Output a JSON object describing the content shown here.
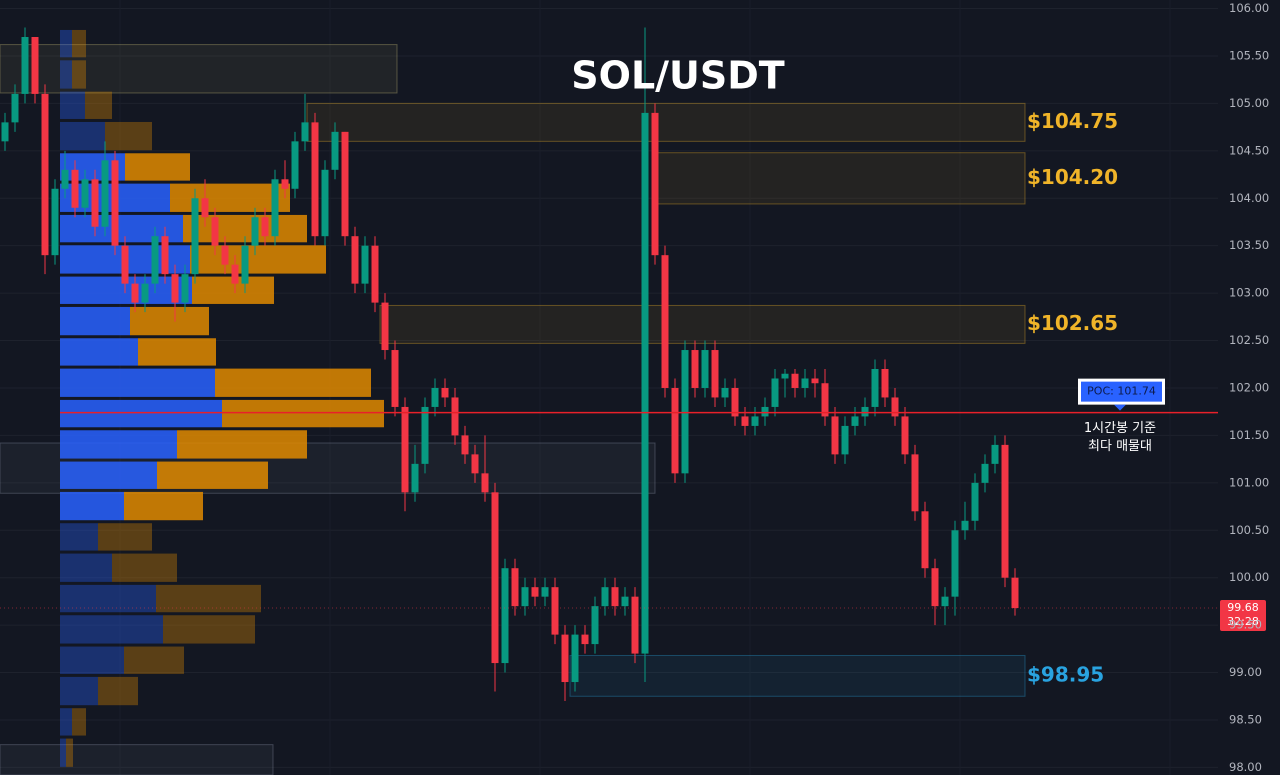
{
  "chart_data": {
    "type": "candlestick",
    "title": "SOL/USDT",
    "ylim": [
      97.92,
      106.09
    ],
    "yticks": [
      {
        "value": 98,
        "label": "98.00"
      },
      {
        "value": 98.5,
        "label": "98.50"
      },
      {
        "value": 99,
        "label": "99.00"
      },
      {
        "value": 99.5,
        "label": "99.50"
      },
      {
        "value": 100,
        "label": "100.00"
      },
      {
        "value": 100.5,
        "label": "100.50"
      },
      {
        "value": 101,
        "label": "101.00"
      },
      {
        "value": 101.5,
        "label": "101.50"
      },
      {
        "value": 102,
        "label": "102.00"
      },
      {
        "value": 102.5,
        "label": "102.50"
      },
      {
        "value": 103,
        "label": "103.00"
      },
      {
        "value": 103.5,
        "label": "103.50"
      },
      {
        "value": 104,
        "label": "104.00"
      },
      {
        "value": 104.5,
        "label": "104.50"
      },
      {
        "value": 105,
        "label": "105.00"
      },
      {
        "value": 105.5,
        "label": "105.50"
      },
      {
        "value": 106,
        "label": "106.00"
      }
    ],
    "grid": true,
    "up_color": "#089981",
    "down_color": "#f23645",
    "ohlc": [
      [
        104.6,
        104.9,
        104.5,
        104.8
      ],
      [
        104.8,
        105.2,
        104.7,
        105.1
      ],
      [
        105.1,
        105.8,
        105.0,
        105.7
      ],
      [
        105.7,
        105.7,
        105.0,
        105.1
      ],
      [
        105.1,
        105.2,
        103.2,
        103.4
      ],
      [
        103.4,
        104.2,
        103.3,
        104.1
      ],
      [
        104.1,
        104.5,
        104.0,
        104.3
      ],
      [
        104.3,
        104.4,
        103.8,
        103.9
      ],
      [
        103.9,
        104.3,
        103.8,
        104.2
      ],
      [
        104.2,
        104.3,
        103.6,
        103.7
      ],
      [
        103.7,
        104.6,
        103.6,
        104.4
      ],
      [
        104.4,
        104.5,
        103.4,
        103.5
      ],
      [
        103.5,
        103.6,
        103.0,
        103.1
      ],
      [
        103.1,
        103.2,
        102.8,
        102.9
      ],
      [
        102.9,
        103.2,
        102.8,
        103.1
      ],
      [
        103.1,
        103.7,
        103.0,
        103.6
      ],
      [
        103.6,
        103.7,
        103.1,
        103.2
      ],
      [
        103.2,
        103.3,
        102.7,
        102.9
      ],
      [
        102.9,
        103.3,
        102.8,
        103.2
      ],
      [
        103.2,
        104.1,
        103.1,
        104.0
      ],
      [
        104.0,
        104.2,
        103.7,
        103.8
      ],
      [
        103.8,
        103.9,
        103.4,
        103.5
      ],
      [
        103.5,
        103.6,
        103.2,
        103.3
      ],
      [
        103.3,
        103.4,
        103.0,
        103.1
      ],
      [
        103.1,
        103.6,
        103.0,
        103.5
      ],
      [
        103.5,
        103.9,
        103.4,
        103.8
      ],
      [
        103.8,
        103.9,
        103.5,
        103.6
      ],
      [
        103.6,
        104.3,
        103.5,
        104.2
      ],
      [
        104.2,
        104.4,
        104.0,
        104.1
      ],
      [
        104.1,
        104.7,
        104.0,
        104.6
      ],
      [
        104.6,
        105.1,
        104.5,
        104.8
      ],
      [
        104.8,
        104.9,
        103.5,
        103.6
      ],
      [
        103.6,
        104.4,
        103.5,
        104.3
      ],
      [
        104.3,
        104.8,
        104.2,
        104.7
      ],
      [
        104.7,
        104.7,
        103.5,
        103.6
      ],
      [
        103.6,
        103.7,
        103.0,
        103.1
      ],
      [
        103.1,
        103.6,
        103.0,
        103.5
      ],
      [
        103.5,
        103.6,
        102.8,
        102.9
      ],
      [
        102.9,
        103.0,
        102.3,
        102.4
      ],
      [
        102.4,
        102.5,
        101.7,
        101.8
      ],
      [
        101.8,
        101.9,
        100.7,
        100.9
      ],
      [
        100.9,
        101.4,
        100.8,
        101.2
      ],
      [
        101.2,
        101.9,
        101.1,
        101.8
      ],
      [
        101.8,
        102.1,
        101.7,
        102.0
      ],
      [
        102.0,
        102.1,
        101.8,
        101.9
      ],
      [
        101.9,
        102.0,
        101.4,
        101.5
      ],
      [
        101.5,
        101.6,
        101.2,
        101.3
      ],
      [
        101.3,
        101.4,
        101.0,
        101.1
      ],
      [
        101.1,
        101.5,
        100.8,
        100.9
      ],
      [
        100.9,
        101.0,
        98.8,
        99.1
      ],
      [
        99.1,
        100.2,
        99.0,
        100.1
      ],
      [
        100.1,
        100.2,
        99.6,
        99.7
      ],
      [
        99.7,
        100.0,
        99.6,
        99.9
      ],
      [
        99.9,
        100.0,
        99.7,
        99.8
      ],
      [
        99.8,
        100.0,
        99.7,
        99.9
      ],
      [
        99.9,
        100.0,
        99.3,
        99.4
      ],
      [
        99.4,
        99.5,
        98.7,
        98.9
      ],
      [
        98.9,
        99.5,
        98.8,
        99.4
      ],
      [
        99.4,
        99.5,
        99.2,
        99.3
      ],
      [
        99.3,
        99.8,
        99.2,
        99.7
      ],
      [
        99.7,
        100.0,
        99.6,
        99.9
      ],
      [
        99.9,
        100.0,
        99.6,
        99.7
      ],
      [
        99.7,
        99.9,
        99.6,
        99.8
      ],
      [
        99.8,
        99.9,
        99.1,
        99.2
      ],
      [
        99.2,
        105.8,
        98.9,
        104.9
      ],
      [
        104.9,
        105.0,
        103.3,
        103.4
      ],
      [
        103.4,
        103.5,
        101.9,
        102.0
      ],
      [
        102.0,
        102.1,
        101.0,
        101.1
      ],
      [
        101.1,
        102.5,
        101.0,
        102.4
      ],
      [
        102.4,
        102.5,
        101.9,
        102.0
      ],
      [
        102.0,
        102.5,
        101.9,
        102.4
      ],
      [
        102.4,
        102.5,
        101.8,
        101.9
      ],
      [
        101.9,
        102.1,
        101.8,
        102.0
      ],
      [
        102.0,
        102.1,
        101.6,
        101.7
      ],
      [
        101.7,
        101.8,
        101.5,
        101.6
      ],
      [
        101.6,
        101.8,
        101.5,
        101.7
      ],
      [
        101.7,
        101.9,
        101.6,
        101.8
      ],
      [
        101.8,
        102.2,
        101.7,
        102.1
      ],
      [
        102.1,
        102.2,
        101.9,
        102.15
      ],
      [
        102.15,
        102.2,
        101.9,
        102.0
      ],
      [
        102.0,
        102.2,
        101.9,
        102.1
      ],
      [
        102.1,
        102.2,
        101.9,
        102.05
      ],
      [
        102.05,
        102.2,
        101.6,
        101.7
      ],
      [
        101.7,
        101.8,
        101.2,
        101.3
      ],
      [
        101.3,
        101.7,
        101.2,
        101.6
      ],
      [
        101.6,
        101.8,
        101.5,
        101.7
      ],
      [
        101.7,
        101.9,
        101.6,
        101.8
      ],
      [
        101.8,
        102.3,
        101.7,
        102.2
      ],
      [
        102.2,
        102.3,
        101.8,
        101.9
      ],
      [
        101.9,
        102.0,
        101.6,
        101.7
      ],
      [
        101.7,
        101.8,
        101.2,
        101.3
      ],
      [
        101.3,
        101.4,
        100.6,
        100.7
      ],
      [
        100.7,
        100.8,
        100.0,
        100.1
      ],
      [
        100.1,
        100.2,
        99.5,
        99.7
      ],
      [
        99.7,
        99.9,
        99.5,
        99.8
      ],
      [
        99.8,
        100.6,
        99.6,
        100.5
      ],
      [
        100.5,
        100.8,
        100.4,
        100.6
      ],
      [
        100.6,
        101.1,
        100.5,
        101.0
      ],
      [
        101.0,
        101.3,
        100.9,
        101.2
      ],
      [
        101.2,
        101.5,
        101.1,
        101.4
      ],
      [
        101.4,
        101.5,
        99.9,
        100.0
      ],
      [
        100.0,
        100.1,
        99.6,
        99.68
      ]
    ],
    "profile": {
      "bins": [
        105.79,
        105.47,
        105.14,
        104.82,
        104.49,
        104.17,
        103.84,
        103.52,
        103.19,
        102.87,
        102.54,
        102.22,
        101.89,
        101.57,
        101.24,
        100.92,
        100.59,
        100.27,
        99.94,
        99.62,
        99.29,
        98.97,
        98.64,
        98.32,
        97.99
      ],
      "series": [
        {
          "color": "#2962ff",
          "values": [
            12,
            12,
            25,
            45,
            65,
            110,
            123,
            130,
            132,
            70,
            78,
            155,
            162,
            117,
            97,
            64,
            38,
            52,
            96,
            103,
            64,
            38,
            12,
            6
          ]
        },
        {
          "color": "#e08a00",
          "values": [
            14,
            14,
            27,
            47,
            65,
            120,
            124,
            136,
            82,
            79,
            78,
            156,
            162,
            130,
            111,
            79,
            54,
            65,
            105,
            92,
            60,
            40,
            14,
            7
          ]
        }
      ]
    },
    "zones": [
      {
        "low": 104.6,
        "high": 105.0,
        "label": "$104.75",
        "color": "#f0b429"
      },
      {
        "low": 103.94,
        "high": 104.48,
        "label": "$104.20",
        "color": "#f0b429"
      },
      {
        "low": 102.47,
        "high": 102.87,
        "label": "$102.65",
        "color": "#f0b429"
      },
      {
        "low": 98.75,
        "high": 99.18,
        "label": "$98.95",
        "color": "#29a3e0"
      },
      {
        "low": 105.11,
        "high": 105.62,
        "color": "#c8be78"
      },
      {
        "low": 100.89,
        "high": 101.42,
        "color": "#8a93a6"
      },
      {
        "low": 97.92,
        "high": 98.24,
        "color": "#8a93a6"
      }
    ],
    "poc": {
      "value": 101.74,
      "label": "POC: 101.74",
      "color": "#e8202a",
      "annotation": [
        "1시간봉 기준",
        "최다 매물대"
      ]
    },
    "last_price": 99.68,
    "countdown": "32:28"
  }
}
